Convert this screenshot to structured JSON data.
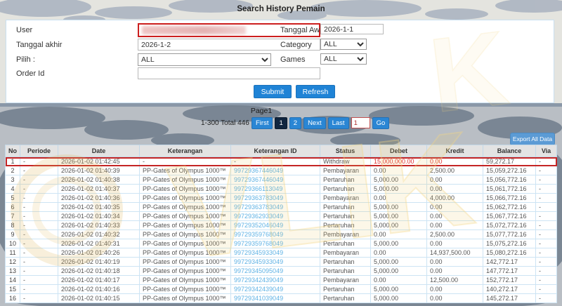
{
  "title": "Search History Pemain",
  "form": {
    "left": [
      {
        "label": "User",
        "value": ""
      },
      {
        "label": "Tanggal akhir",
        "value": "2026-1-2"
      },
      {
        "label": "Pilih  :",
        "value": "ALL"
      },
      {
        "label": "Order Id",
        "value": ""
      }
    ],
    "right": [
      {
        "label": "Tanggal Awal",
        "value": "2026-1-1"
      },
      {
        "label": "Category",
        "value": "ALL"
      },
      {
        "label": "Games",
        "value": "ALL"
      }
    ],
    "submit_label": "Submit",
    "refresh_label": "Refresh"
  },
  "pagination": {
    "page_label": "Page1",
    "range_text": "1-300 Total 446 Entri",
    "first": "First",
    "page1": "1",
    "page2": "2",
    "next": "Next",
    "last": "Last",
    "goto_value": "1",
    "go_label": "Go",
    "active_page": "1"
  },
  "export_label": "Export All Data",
  "watermark": {
    "letters": "VLIK"
  },
  "colors": {
    "accent_blue": "#1f83d6",
    "active_page_bg": "#10253f",
    "export_blue": "#5b9bd5",
    "link_blue": "#5fb2e5",
    "alert_red": "#e02b2b",
    "highlight_border": "#c42525",
    "table_border": "#cde4f4"
  },
  "table": {
    "headers": [
      "No",
      "Periode",
      "Date",
      "Keterangan",
      "Keterangan ID",
      "Status",
      "Debet",
      "Kredit",
      "Balance",
      "Via"
    ],
    "rows": [
      {
        "cells": [
          "1",
          "-",
          "2026-01-02 01:42:45",
          "-",
          "-",
          "Withdraw",
          "15,000,000.00",
          "0.00",
          "59,272.17",
          "-"
        ],
        "highlight": true,
        "red": true,
        "id_link": false
      },
      {
        "cells": [
          "2",
          "-",
          "2026-01-02 01:40:39",
          "PP-Gates of Olympus 1000™",
          "99729367446049",
          "Pembayaran",
          "0.00",
          "2,500.00",
          "15,059,272.16",
          "-"
        ],
        "id_link": true
      },
      {
        "cells": [
          "3",
          "-",
          "2026-01-02 01:40:38",
          "PP-Gates of Olympus 1000™",
          "99729367446049",
          "Pertaruhan",
          "5,000.00",
          "0.00",
          "15,056,772.16",
          "-"
        ],
        "id_link": true
      },
      {
        "cells": [
          "4",
          "-",
          "2026-01-02 01:40:37",
          "PP-Gates of Olympus 1000™",
          "99729366113049",
          "Pertaruhan",
          "5,000.00",
          "0.00",
          "15,061,772.16",
          "-"
        ],
        "id_link": true
      },
      {
        "cells": [
          "5",
          "-",
          "2026-01-02 01:40:36",
          "PP-Gates of Olympus 1000™",
          "99729363783049",
          "Pembayaran",
          "0.00",
          "4,000.00",
          "15,066,772.16",
          "-"
        ],
        "id_link": true
      },
      {
        "cells": [
          "6",
          "-",
          "2026-01-02 01:40:35",
          "PP-Gates of Olympus 1000™",
          "99729363783049",
          "Pertaruhan",
          "5,000.00",
          "0.00",
          "15,062,772.16",
          "-"
        ],
        "id_link": true
      },
      {
        "cells": [
          "7",
          "-",
          "2026-01-02 01:40:34",
          "PP-Gates of Olympus 1000™",
          "99729362933049",
          "Pertaruhan",
          "5,000.00",
          "0.00",
          "15,067,772.16",
          "-"
        ],
        "id_link": true
      },
      {
        "cells": [
          "8",
          "-",
          "2026-01-02 01:40:33",
          "PP-Gates of Olympus 1000™",
          "99729352046049",
          "Pertaruhan",
          "5,000.00",
          "0.00",
          "15,072,772.16",
          "-"
        ],
        "id_link": true
      },
      {
        "cells": [
          "9",
          "-",
          "2026-01-02 01:40:32",
          "PP-Gates of Olympus 1000™",
          "99729359768049",
          "Pembayaran",
          "0.00",
          "2,500.00",
          "15,077,772.16",
          "-"
        ],
        "id_link": true
      },
      {
        "cells": [
          "10",
          "-",
          "2026-01-02 01:40:31",
          "PP-Gates of Olympus 1000™",
          "99729359768049",
          "Pertaruhan",
          "5,000.00",
          "0.00",
          "15,075,272.16",
          "-"
        ],
        "id_link": true
      },
      {
        "cells": [
          "11",
          "-",
          "2026-01-02 01:40:26",
          "PP-Gates of Olympus 1000™",
          "99729345933049",
          "Pembayaran",
          "0.00",
          "14,937,500.00",
          "15,080,272.16",
          "-"
        ],
        "id_link": true
      },
      {
        "cells": [
          "12",
          "-",
          "2026-01-02 01:40:19",
          "PP-Gates of Olympus 1000™",
          "99729345933049",
          "Pertaruhan",
          "5,000.00",
          "0.00",
          "142,772.17",
          "-"
        ],
        "id_link": true
      },
      {
        "cells": [
          "13",
          "-",
          "2026-01-02 01:40:18",
          "PP-Gates of Olympus 1000™",
          "99729345095049",
          "Pertaruhan",
          "5,000.00",
          "0.00",
          "147,772.17",
          "-"
        ],
        "id_link": true
      },
      {
        "cells": [
          "14",
          "-",
          "2026-01-02 01:40:17",
          "PP-Gates of Olympus 1000™",
          "99729342439049",
          "Pembayaran",
          "0.00",
          "12,500.00",
          "152,772.17",
          "-"
        ],
        "id_link": true
      },
      {
        "cells": [
          "15",
          "-",
          "2026-01-02 01:40:16",
          "PP-Gates of Olympus 1000™",
          "99729342439049",
          "Pertaruhan",
          "5,000.00",
          "0.00",
          "140,272.17",
          "-"
        ],
        "id_link": true
      },
      {
        "cells": [
          "16",
          "-",
          "2026-01-02 01:40:15",
          "PP-Gates of Olympus 1000™",
          "99729341039049",
          "Pertaruhan",
          "5,000.00",
          "0.00",
          "145,272.17",
          "-"
        ],
        "id_link": true
      }
    ]
  }
}
